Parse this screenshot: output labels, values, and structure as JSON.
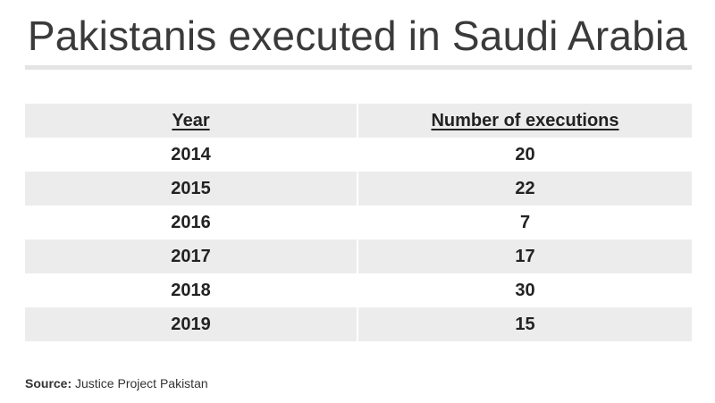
{
  "title": "Pakistanis executed in Saudi Arabia",
  "chart_data": {
    "type": "table",
    "title": "Pakistanis executed in Saudi Arabia",
    "columns": [
      "Year",
      "Number of executions"
    ],
    "rows": [
      [
        "2014",
        "20"
      ],
      [
        "2015",
        "22"
      ],
      [
        "2016",
        "7"
      ],
      [
        "2017",
        "17"
      ],
      [
        "2018",
        "30"
      ],
      [
        "2019",
        "15"
      ]
    ],
    "x": [
      2014,
      2015,
      2016,
      2017,
      2018,
      2019
    ],
    "values": [
      20,
      22,
      7,
      17,
      30,
      15
    ]
  },
  "source": {
    "label": "Source:",
    "text": "Justice Project Pakistan"
  },
  "colors": {
    "row_shade": "#ececec",
    "rule": "#e4e4e4",
    "text": "#222222"
  }
}
